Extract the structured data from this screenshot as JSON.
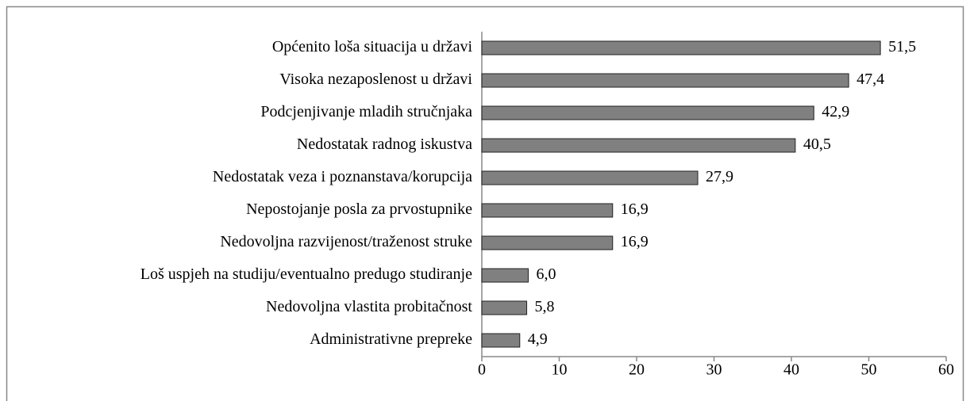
{
  "chart_data": {
    "type": "bar",
    "orientation": "horizontal",
    "categories": [
      "Općenito loša situacija u državi",
      "Visoka nezaposlenost u državi",
      "Podcjenjivanje mladih stručnjaka",
      "Nedostatak radnog iskustva",
      "Nedostatak veza i poznanstava/korupcija",
      "Nepostojanje posla za prvostupnike",
      "Nedovoljna razvijenost/traženost struke",
      "Loš uspjeh na studiju/eventualno predugo studiranje",
      "Nedovoljna vlastita probitačnost",
      "Administrativne prepreke"
    ],
    "values": [
      51.5,
      47.4,
      42.9,
      40.5,
      27.9,
      16.9,
      16.9,
      6.0,
      5.8,
      4.9
    ],
    "value_labels": [
      "51,5",
      "47,4",
      "42,9",
      "40,5",
      "27,9",
      "16,9",
      "16,9",
      "6,0",
      "5,8",
      "4,9"
    ],
    "color": "#808080",
    "xlim": [
      0,
      60
    ],
    "xticks": [
      0,
      10,
      20,
      30,
      40,
      50,
      60
    ],
    "grid": false
  }
}
